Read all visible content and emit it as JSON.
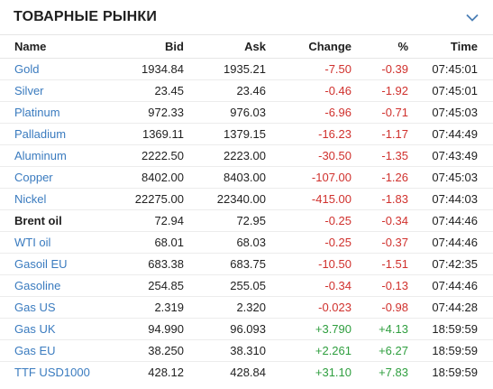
{
  "widget": {
    "title": "ТОВАРНЫЕ РЫНКИ",
    "collapse_icon": "chevron-down-icon"
  },
  "columns": {
    "name": "Name",
    "bid": "Bid",
    "ask": "Ask",
    "change": "Change",
    "percent": "%",
    "time": "Time"
  },
  "colors": {
    "link": "#3a7bbf",
    "negative": "#d0312d",
    "positive": "#2e9e3e",
    "chevron": "#4a7fb5"
  },
  "rows": [
    {
      "name": "Gold",
      "bid": "1934.84",
      "ask": "1935.21",
      "change": "-7.50",
      "pct": "-0.39",
      "time": "07:45:01",
      "dir": "neg",
      "bold": false
    },
    {
      "name": "Silver",
      "bid": "23.45",
      "ask": "23.46",
      "change": "-0.46",
      "pct": "-1.92",
      "time": "07:45:01",
      "dir": "neg",
      "bold": false
    },
    {
      "name": "Platinum",
      "bid": "972.33",
      "ask": "976.03",
      "change": "-6.96",
      "pct": "-0.71",
      "time": "07:45:03",
      "dir": "neg",
      "bold": false
    },
    {
      "name": "Palladium",
      "bid": "1369.11",
      "ask": "1379.15",
      "change": "-16.23",
      "pct": "-1.17",
      "time": "07:44:49",
      "dir": "neg",
      "bold": false
    },
    {
      "name": "Aluminum",
      "bid": "2222.50",
      "ask": "2223.00",
      "change": "-30.50",
      "pct": "-1.35",
      "time": "07:43:49",
      "dir": "neg",
      "bold": false
    },
    {
      "name": "Copper",
      "bid": "8402.00",
      "ask": "8403.00",
      "change": "-107.00",
      "pct": "-1.26",
      "time": "07:45:03",
      "dir": "neg",
      "bold": false
    },
    {
      "name": "Nickel",
      "bid": "22275.00",
      "ask": "22340.00",
      "change": "-415.00",
      "pct": "-1.83",
      "time": "07:44:03",
      "dir": "neg",
      "bold": false
    },
    {
      "name": "Brent oil",
      "bid": "72.94",
      "ask": "72.95",
      "change": "-0.25",
      "pct": "-0.34",
      "time": "07:44:46",
      "dir": "neg",
      "bold": true
    },
    {
      "name": "WTI oil",
      "bid": "68.01",
      "ask": "68.03",
      "change": "-0.25",
      "pct": "-0.37",
      "time": "07:44:46",
      "dir": "neg",
      "bold": false
    },
    {
      "name": "Gasoil EU",
      "bid": "683.38",
      "ask": "683.75",
      "change": "-10.50",
      "pct": "-1.51",
      "time": "07:42:35",
      "dir": "neg",
      "bold": false
    },
    {
      "name": "Gasoline",
      "bid": "254.85",
      "ask": "255.05",
      "change": "-0.34",
      "pct": "-0.13",
      "time": "07:44:46",
      "dir": "neg",
      "bold": false
    },
    {
      "name": "Gas US",
      "bid": "2.319",
      "ask": "2.320",
      "change": "-0.023",
      "pct": "-0.98",
      "time": "07:44:28",
      "dir": "neg",
      "bold": false
    },
    {
      "name": "Gas UK",
      "bid": "94.990",
      "ask": "96.093",
      "change": "+3.790",
      "pct": "+4.13",
      "time": "18:59:59",
      "dir": "pos",
      "bold": false
    },
    {
      "name": "Gas EU",
      "bid": "38.250",
      "ask": "38.310",
      "change": "+2.261",
      "pct": "+6.27",
      "time": "18:59:59",
      "dir": "pos",
      "bold": false
    },
    {
      "name": "TTF USD1000",
      "bid": "428.12",
      "ask": "428.84",
      "change": "+31.10",
      "pct": "+7.83",
      "time": "18:59:59",
      "dir": "pos",
      "bold": false
    }
  ]
}
